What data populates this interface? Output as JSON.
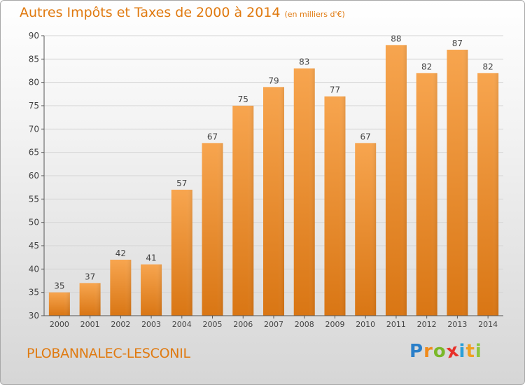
{
  "title": "Autres Impôts et Taxes de 2000 à 2014",
  "unit_note": "(en milliers d'€)",
  "place_name": "PLOBANNALEC-LESCONIL",
  "logo": {
    "letters": [
      "P",
      "r",
      "o",
      "x",
      "i",
      "t",
      "i"
    ],
    "colors": [
      "#2a7fc9",
      "#f08a1a",
      "#7ab829",
      "#e8312a",
      "#2a9fd8",
      "#f0a020",
      "#8cc63f"
    ]
  },
  "colors": {
    "accent": "#e07a10",
    "bar_top": "#f7a54f",
    "bar_bottom": "#d97614",
    "grid": "#d4d4d4"
  },
  "chart_data": {
    "type": "bar",
    "title": "Autres Impôts et Taxes de 2000 à 2014",
    "xlabel": "",
    "ylabel": "",
    "categories": [
      "2000",
      "2001",
      "2002",
      "2003",
      "2004",
      "2005",
      "2006",
      "2007",
      "2008",
      "2009",
      "2010",
      "2011",
      "2012",
      "2013",
      "2014"
    ],
    "values": [
      35,
      37,
      42,
      41,
      57,
      67,
      75,
      79,
      83,
      77,
      67,
      88,
      82,
      87,
      82
    ],
    "ylim": [
      30,
      90
    ],
    "yticks": [
      30,
      35,
      40,
      45,
      50,
      55,
      60,
      65,
      70,
      75,
      80,
      85,
      90
    ],
    "grid": true
  }
}
